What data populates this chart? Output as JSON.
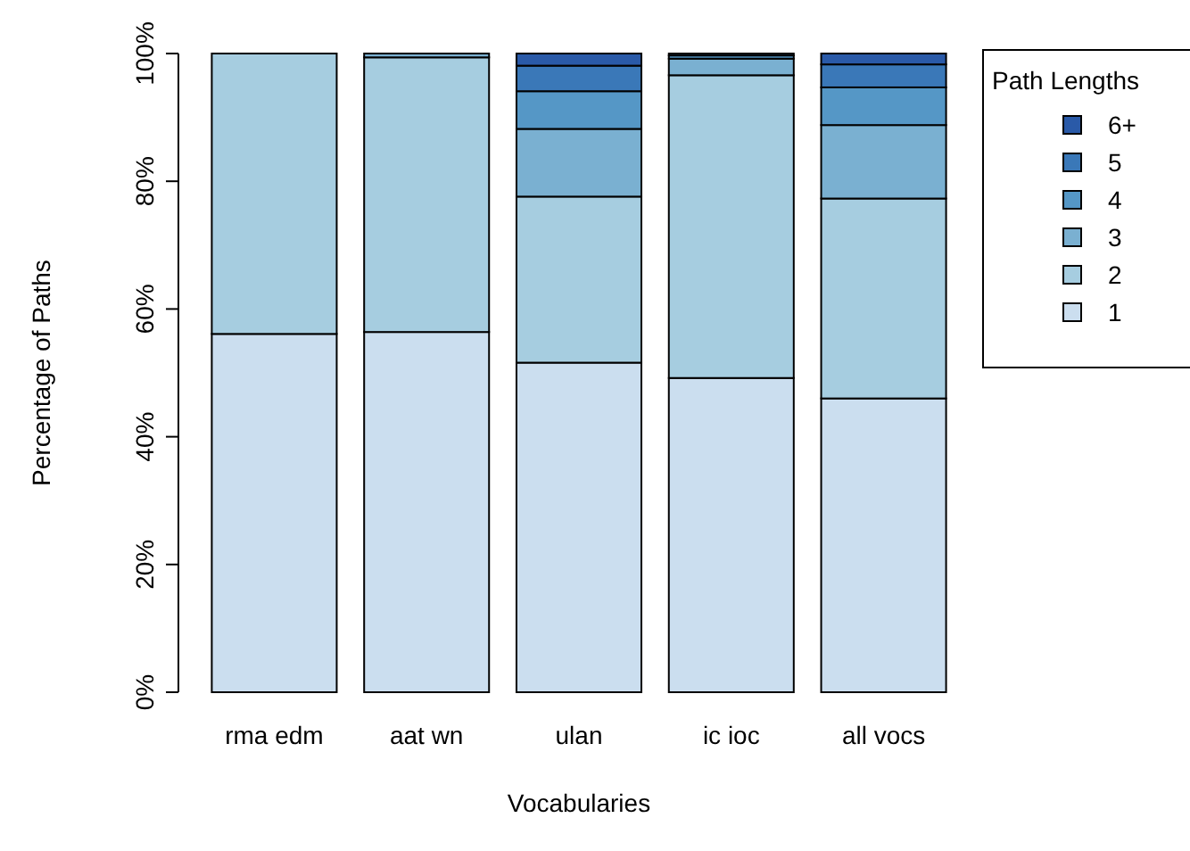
{
  "chart_data": {
    "type": "bar",
    "stacked": true,
    "xlabel": "Vocabularies",
    "ylabel": "Percentage of Paths",
    "legend_title": "Path Lengths",
    "legend": "right",
    "categories": [
      "rma edm",
      "aat wn",
      "ulan",
      "ic ioc",
      "all vocs"
    ],
    "ylim": [
      0,
      100
    ],
    "yticks": [
      {
        "value": 0,
        "label": "0%"
      },
      {
        "value": 20,
        "label": "20%"
      },
      {
        "value": 40,
        "label": "40%"
      },
      {
        "value": 60,
        "label": "60%"
      },
      {
        "value": 80,
        "label": "80%"
      },
      {
        "value": 100,
        "label": "100%"
      }
    ],
    "series": [
      {
        "name": "1",
        "color": "#cbdeef",
        "values": [
          56.1,
          56.4,
          51.6,
          49.2,
          46.0
        ]
      },
      {
        "name": "2",
        "color": "#a6cde0",
        "values": [
          43.9,
          43.0,
          26.0,
          47.4,
          31.3
        ]
      },
      {
        "name": "3",
        "color": "#7ab0d1",
        "values": [
          0,
          0.6,
          10.6,
          2.6,
          11.5
        ]
      },
      {
        "name": "4",
        "color": "#5597c6",
        "values": [
          0,
          null,
          5.9,
          0.5,
          5.9
        ]
      },
      {
        "name": "5",
        "color": "#3a78b8",
        "values": [
          0,
          null,
          4.0,
          0.3,
          3.6
        ]
      },
      {
        "name": "6+",
        "color": "#2a5aa8",
        "values": [
          0,
          0,
          1.9,
          0,
          1.7
        ]
      }
    ]
  }
}
